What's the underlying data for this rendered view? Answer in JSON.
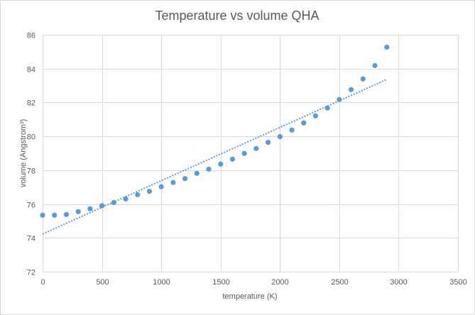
{
  "chart_data": {
    "type": "scatter",
    "title": "Temperature vs volume QHA",
    "xlabel": "temperature (K)",
    "ylabel": "volume (Angstrom³)",
    "xlim": [
      0,
      3500
    ],
    "ylim": [
      72,
      86
    ],
    "x_ticks": [
      0,
      500,
      1000,
      1500,
      2000,
      2500,
      3000,
      3500
    ],
    "y_ticks": [
      72,
      74,
      76,
      78,
      80,
      82,
      84,
      86
    ],
    "grid": true,
    "legend": "none",
    "series": [
      {
        "name": "volume",
        "color": "#5b9bd5",
        "x": [
          0,
          100,
          200,
          300,
          400,
          500,
          600,
          700,
          800,
          900,
          1000,
          1100,
          1200,
          1300,
          1400,
          1500,
          1600,
          1700,
          1800,
          1900,
          2000,
          2100,
          2200,
          2300,
          2400,
          2500,
          2600,
          2700,
          2800,
          2900
        ],
        "y": [
          75.34,
          75.34,
          75.38,
          75.55,
          75.72,
          75.9,
          76.09,
          76.3,
          76.55,
          76.75,
          77.02,
          77.27,
          77.5,
          77.81,
          78.06,
          78.36,
          78.65,
          78.99,
          79.28,
          79.64,
          79.98,
          80.37,
          80.79,
          81.21,
          81.67,
          82.17,
          82.76,
          83.39,
          84.18,
          85.27
        ]
      }
    ],
    "trendline": {
      "type": "linear",
      "style": "dotted",
      "color": "#5b9bd5",
      "x_range": [
        0,
        2900
      ],
      "y_start": 74.23,
      "y_end": 83.36
    }
  }
}
